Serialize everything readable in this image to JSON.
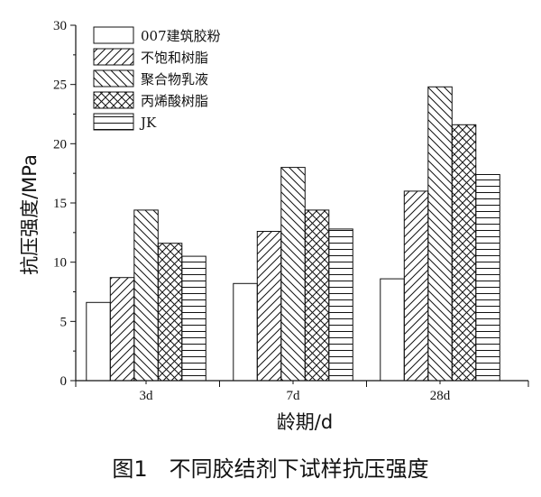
{
  "chart_data": {
    "type": "bar",
    "categories": [
      "3d",
      "7d",
      "28d"
    ],
    "series": [
      {
        "name": "007建筑胶粉",
        "pattern": "none",
        "values": [
          6.6,
          8.2,
          8.6
        ]
      },
      {
        "name": "不饱和树脂",
        "pattern": "forward-diagonal",
        "values": [
          8.7,
          12.6,
          16.0
        ]
      },
      {
        "name": "聚合物乳液",
        "pattern": "back-diagonal",
        "values": [
          14.4,
          18.0,
          24.8
        ]
      },
      {
        "name": "丙烯酸树脂",
        "pattern": "crosshatch",
        "values": [
          11.6,
          14.4,
          21.6
        ]
      },
      {
        "name": "JK",
        "pattern": "horizontal",
        "values": [
          10.5,
          12.8,
          17.4
        ]
      }
    ],
    "xlabel": "龄期/d",
    "ylabel": "抗压强度/MPa",
    "ylim": [
      0,
      30
    ],
    "yticks": [
      0,
      5,
      10,
      15,
      20,
      25,
      30
    ],
    "legend_position": "top-left",
    "grid": false,
    "colors": {
      "bar_stroke": "#111111",
      "bar_fill": "#ffffff"
    }
  },
  "caption": "图1　不同胶结剂下试样抗压强度"
}
